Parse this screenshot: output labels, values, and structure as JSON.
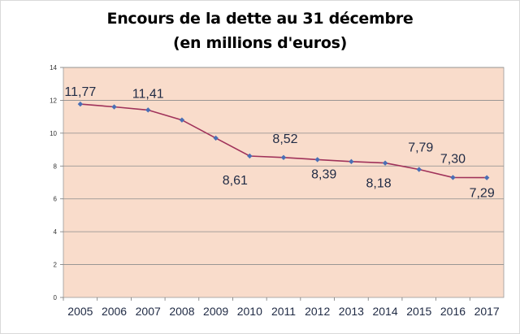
{
  "chart_data": {
    "type": "line",
    "title_line1": "Encours de la dette au 31 décembre",
    "title_line2": "(en millions d'euros)",
    "xlabel": "",
    "ylabel": "",
    "ylim": [
      0,
      14
    ],
    "yticks": [
      "0",
      "2",
      "4",
      "6",
      "8",
      "10",
      "12",
      "14"
    ],
    "categories": [
      "2005",
      "2006",
      "2007",
      "2008",
      "2009",
      "2010",
      "2011",
      "2012",
      "2013",
      "2014",
      "2015",
      "2016",
      "2017"
    ],
    "values": [
      11.77,
      11.6,
      11.41,
      10.8,
      9.7,
      8.61,
      8.52,
      8.39,
      8.27,
      8.18,
      7.79,
      7.3,
      7.29
    ],
    "data_labels": [
      {
        "index": 0,
        "text": "11,77"
      },
      {
        "index": 2,
        "text": "11,41"
      },
      {
        "index": 5,
        "text": "8,61"
      },
      {
        "index": 6,
        "text": "8,52"
      },
      {
        "index": 7,
        "text": "8,39"
      },
      {
        "index": 9,
        "text": "8,18"
      },
      {
        "index": 10,
        "text": "7,79"
      },
      {
        "index": 11,
        "text": "7,30"
      },
      {
        "index": 12,
        "text": "7,29"
      }
    ],
    "grid": true,
    "legend": "none",
    "colors": {
      "plot_background": "#f9dccb",
      "line": "#a0325a",
      "marker": "#4a6fb5",
      "gridline": "#8c8c8c"
    }
  }
}
